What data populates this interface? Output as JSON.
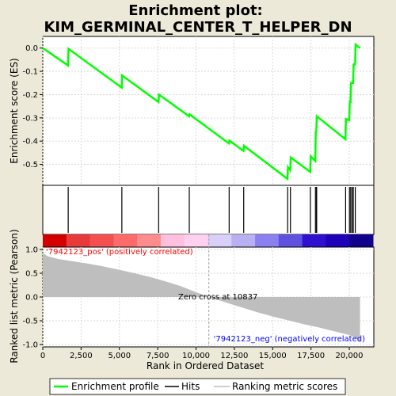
{
  "title_line1": "Enrichment plot:",
  "title_line2": "KIM_GERMINAL_CENTER_T_HELPER_DN",
  "colors": {
    "background": "#ece9d8",
    "es_line": "#00ff00",
    "hits": "#000000",
    "metric_fill": "#bebebe",
    "pos_text": "#ff0000",
    "neg_text": "#0000ff",
    "zero_line": "#a0a0a0",
    "grid": "#d9d9d9"
  },
  "heatmap_colors": [
    "#d40000",
    "#e83a3a",
    "#f55050",
    "#ff6a6a",
    "#ff8c8c",
    "#ffc0e0",
    "#ffd0f0",
    "#d8d0f8",
    "#b8b0f0",
    "#8c80f0",
    "#6050e0",
    "#3010d0",
    "#2000b8",
    "#10008a"
  ],
  "annotations": {
    "pos": "'7942123_pos' (positively correlated)",
    "neg": "'7942123_neg' (negatively correlated)",
    "zero": "Zero cross at 10837"
  },
  "legend": {
    "enrichment": "Enrichment profile",
    "hits": "Hits",
    "ranking": "Ranking metric scores"
  },
  "chart_data": {
    "type": "line",
    "xlabel": "Rank in Ordered Dataset",
    "xlim": [
      0,
      21600
    ],
    "xticks": [
      0,
      2500,
      5000,
      7500,
      10000,
      12500,
      15000,
      17500,
      20000
    ],
    "xtick_labels": [
      "0",
      "2,500",
      "5,000",
      "7,500",
      "10,000",
      "12,500",
      "15,000",
      "17,500",
      "20,000"
    ],
    "es_panel": {
      "ylabel": "Enrichment score (ES)",
      "ylim": [
        -0.59,
        0.05
      ],
      "yticks": [
        0.0,
        -0.1,
        -0.2,
        -0.3,
        -0.4,
        -0.5
      ],
      "ytick_labels": [
        "0.0",
        "-0.1",
        "-0.2",
        "-0.3",
        "-0.4",
        "-0.5"
      ],
      "profile": [
        [
          0,
          0.0
        ],
        [
          1650,
          -0.075
        ],
        [
          1680,
          -0.003
        ],
        [
          5150,
          -0.17
        ],
        [
          5180,
          -0.118
        ],
        [
          7550,
          -0.232
        ],
        [
          7580,
          -0.2
        ],
        [
          9550,
          -0.293
        ],
        [
          9580,
          -0.285
        ],
        [
          12150,
          -0.41
        ],
        [
          12180,
          -0.398
        ],
        [
          13100,
          -0.442
        ],
        [
          13130,
          -0.42
        ],
        [
          15970,
          -0.562
        ],
        [
          16000,
          -0.512
        ],
        [
          16150,
          -0.525
        ],
        [
          16180,
          -0.47
        ],
        [
          17450,
          -0.532
        ],
        [
          17480,
          -0.465
        ],
        [
          17780,
          -0.485
        ],
        [
          17810,
          -0.36
        ],
        [
          17850,
          -0.358
        ],
        [
          17880,
          -0.293
        ],
        [
          19750,
          -0.392
        ],
        [
          19780,
          -0.305
        ],
        [
          20000,
          -0.31
        ],
        [
          20030,
          -0.232
        ],
        [
          20080,
          -0.232
        ],
        [
          20110,
          -0.15
        ],
        [
          20250,
          -0.15
        ],
        [
          20280,
          -0.07
        ],
        [
          20380,
          -0.07
        ],
        [
          20410,
          0.015
        ],
        [
          20700,
          0.0
        ]
      ]
    },
    "hits": [
      1660,
      5160,
      7560,
      9560,
      12160,
      13110,
      15980,
      16160,
      17460,
      17790,
      17860,
      17870,
      19760,
      20010,
      20090,
      20180,
      20260,
      20390
    ],
    "metric_panel": {
      "ylabel": "Ranked list metric (Pearson)",
      "ylim": [
        -1.05,
        1.05
      ],
      "yticks": [
        1.0,
        0.5,
        0.0,
        -0.5,
        -1.0
      ],
      "ytick_labels": [
        "1.0",
        "0.5",
        "0.0",
        "-0.5",
        "-1.0"
      ],
      "zero_cross": 10837,
      "curve": [
        [
          0,
          0.93
        ],
        [
          300,
          0.86
        ],
        [
          1000,
          0.8
        ],
        [
          2000,
          0.75
        ],
        [
          3000,
          0.7
        ],
        [
          4000,
          0.64
        ],
        [
          5000,
          0.57
        ],
        [
          6000,
          0.5
        ],
        [
          7000,
          0.42
        ],
        [
          8000,
          0.33
        ],
        [
          9000,
          0.23
        ],
        [
          10000,
          0.1
        ],
        [
          10837,
          0.0
        ],
        [
          12000,
          -0.12
        ],
        [
          13000,
          -0.22
        ],
        [
          14000,
          -0.32
        ],
        [
          15000,
          -0.41
        ],
        [
          16000,
          -0.49
        ],
        [
          17000,
          -0.57
        ],
        [
          18000,
          -0.64
        ],
        [
          19000,
          -0.72
        ],
        [
          20000,
          -0.8
        ],
        [
          20500,
          -0.87
        ],
        [
          20700,
          -0.97
        ]
      ]
    }
  }
}
